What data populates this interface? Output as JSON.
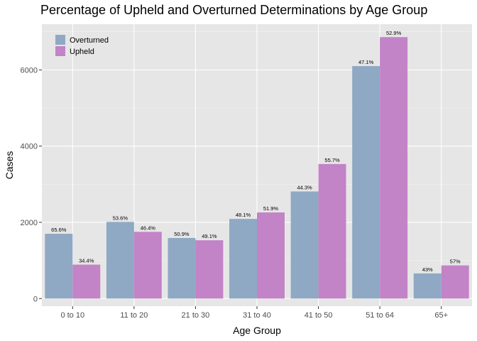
{
  "chart_data": {
    "type": "bar",
    "title": "Percentage of Upheld and Overturned Determinations by Age Group",
    "xlabel": "Age Group",
    "ylabel": "Cases",
    "categories": [
      "0 to 10",
      "11 to 20",
      "21 to 30",
      "31 to 40",
      "41 to 50",
      "51 to 64",
      "65+"
    ],
    "series": [
      {
        "name": "Overturned",
        "color": "#8fa9c4",
        "values": [
          1700,
          2010,
          1590,
          2090,
          2810,
          6100,
          660
        ],
        "labels": [
          "65.6%",
          "53.6%",
          "50.9%",
          "48.1%",
          "44.3%",
          "47.1%",
          "43%"
        ]
      },
      {
        "name": "Upheld",
        "color": "#c383c7",
        "values": [
          890,
          1750,
          1530,
          2260,
          3530,
          6860,
          870
        ],
        "labels": [
          "34.4%",
          "46.4%",
          "49.1%",
          "51.9%",
          "55.7%",
          "52.9%",
          "57%"
        ]
      }
    ],
    "ylim": [
      -200,
      7200
    ],
    "yticks": [
      0,
      2000,
      4000,
      6000
    ],
    "ytick_labels": [
      "0",
      "2000",
      "4000",
      "6000"
    ],
    "grid": true,
    "legend_position": "top-left",
    "panel_background": "#e6e6e6"
  }
}
